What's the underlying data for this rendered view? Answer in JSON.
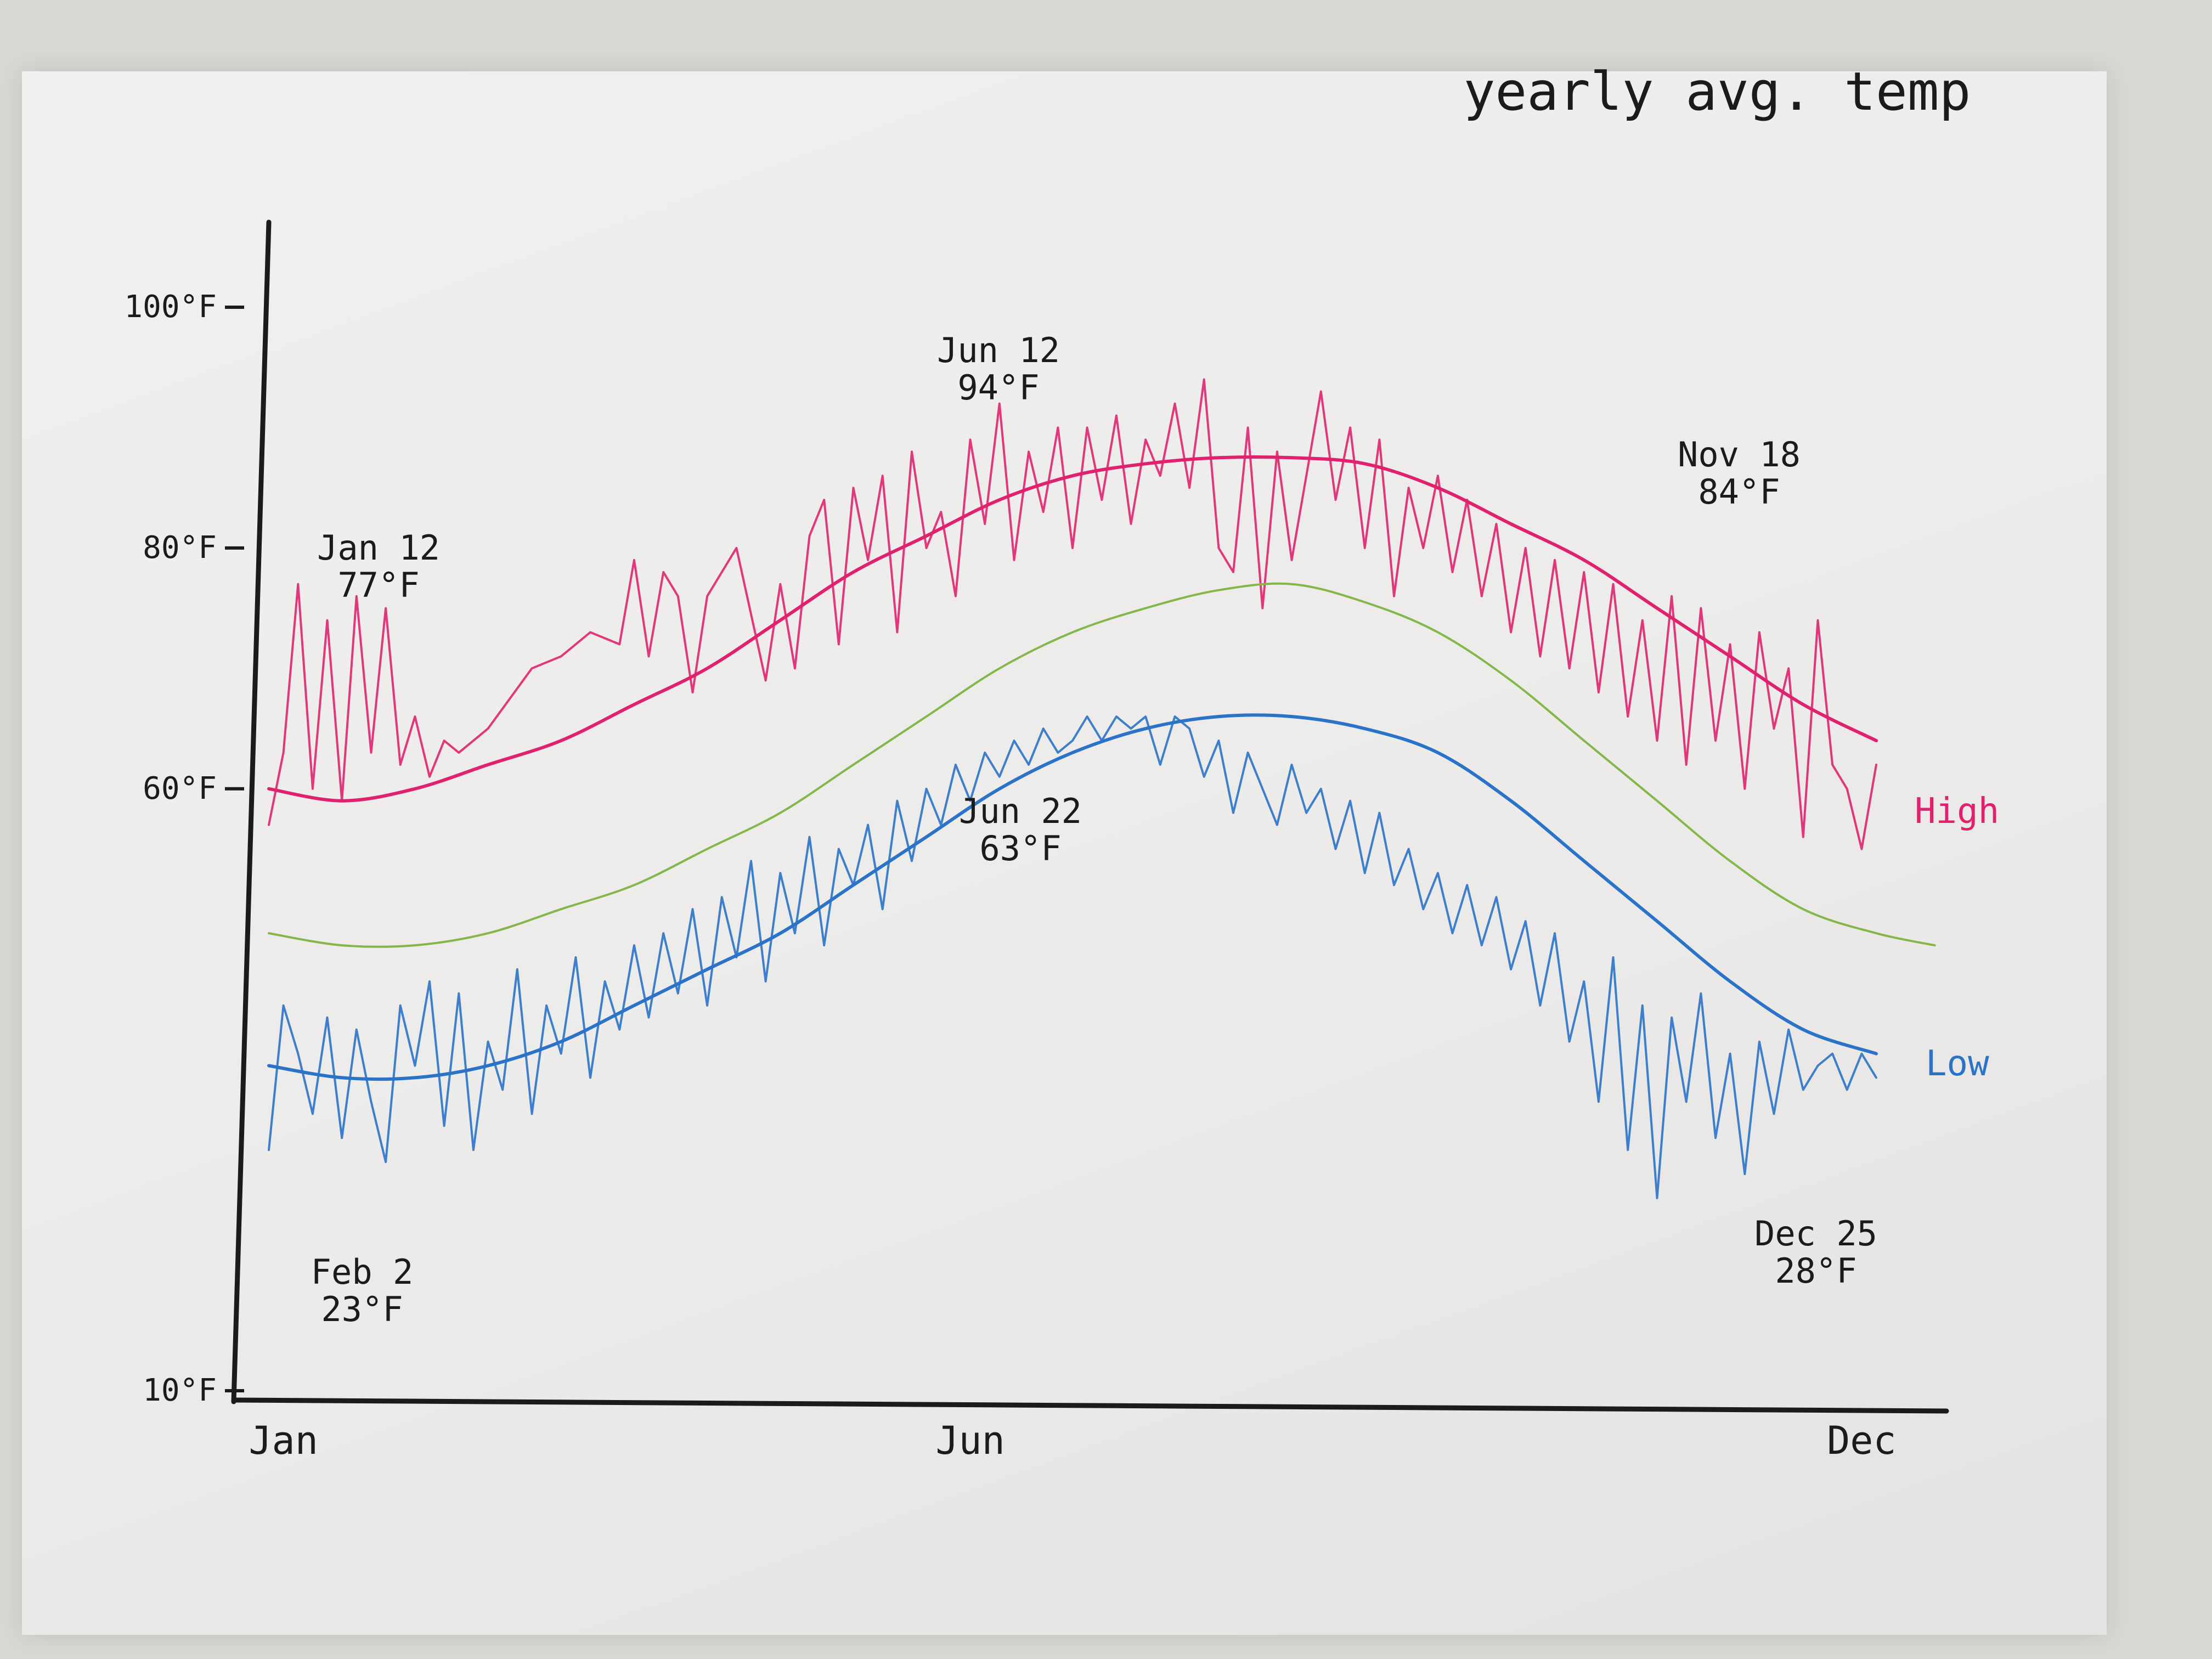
{
  "chart_data": {
    "type": "line",
    "title": "yearly avg. temp",
    "xlabel": "",
    "ylabel": "",
    "x_ticks": [
      "Jan",
      "Jun",
      "Dec"
    ],
    "y_ticks": [
      {
        "value": 100,
        "label": "100°F"
      },
      {
        "value": 80,
        "label": "80°F"
      },
      {
        "value": 60,
        "label": "60°F"
      },
      {
        "value": 10,
        "label": "10°F"
      }
    ],
    "xlim": [
      1,
      12
    ],
    "ylim": [
      10,
      110
    ],
    "grid": false,
    "legend": "inline-right",
    "series": [
      {
        "name": "High",
        "color": "#e0226e",
        "kind": "average",
        "x": [
          1,
          1.5,
          2,
          2.5,
          3,
          3.5,
          4,
          4.5,
          5,
          5.5,
          6,
          6.5,
          7,
          7.5,
          8,
          8.5,
          9,
          9.5,
          10,
          10.5,
          11,
          11.5,
          12
        ],
        "y": [
          60,
          59,
          60,
          62,
          64,
          67,
          70,
          74,
          78,
          81,
          84,
          86,
          87,
          87.5,
          87.5,
          87,
          85,
          82,
          79,
          75,
          71,
          67,
          64
        ]
      },
      {
        "name": "High (daily)",
        "color": "#e0226e",
        "kind": "daily",
        "x": [
          1,
          1.1,
          1.2,
          1.3,
          1.4,
          1.5,
          1.6,
          1.7,
          1.8,
          1.9,
          2,
          2.1,
          2.2,
          2.3,
          2.5,
          2.8,
          3,
          3.2,
          3.4,
          3.5,
          3.6,
          3.7,
          3.8,
          3.9,
          4,
          4.2,
          4.4,
          4.5,
          4.6,
          4.7,
          4.8,
          4.9,
          5,
          5.1,
          5.2,
          5.3,
          5.4,
          5.5,
          5.6,
          5.7,
          5.8,
          5.9,
          6,
          6.1,
          6.2,
          6.3,
          6.4,
          6.5,
          6.6,
          6.7,
          6.8,
          6.9,
          7,
          7.1,
          7.2,
          7.3,
          7.4,
          7.5,
          7.6,
          7.7,
          7.8,
          7.9,
          8,
          8.1,
          8.2,
          8.3,
          8.4,
          8.5,
          8.6,
          8.7,
          8.8,
          8.9,
          9,
          9.1,
          9.2,
          9.3,
          9.4,
          9.5,
          9.6,
          9.7,
          9.8,
          9.9,
          10,
          10.1,
          10.2,
          10.3,
          10.4,
          10.5,
          10.6,
          10.7,
          10.8,
          10.9,
          11,
          11.1,
          11.2,
          11.3,
          11.4,
          11.5,
          11.6,
          11.7,
          11.8,
          11.9,
          12
        ],
        "y": [
          57,
          63,
          77,
          60,
          74,
          59,
          76,
          63,
          75,
          62,
          66,
          61,
          64,
          63,
          65,
          70,
          71,
          73,
          72,
          79,
          71,
          78,
          76,
          68,
          76,
          80,
          69,
          77,
          70,
          81,
          84,
          72,
          85,
          79,
          86,
          73,
          88,
          80,
          83,
          76,
          89,
          82,
          92,
          79,
          88,
          83,
          90,
          80,
          90,
          84,
          91,
          82,
          89,
          86,
          92,
          85,
          94,
          80,
          78,
          90,
          75,
          88,
          79,
          86,
          93,
          84,
          90,
          80,
          89,
          76,
          85,
          80,
          86,
          78,
          84,
          76,
          82,
          73,
          80,
          71,
          79,
          70,
          78,
          68,
          77,
          66,
          74,
          64,
          76,
          62,
          75,
          64,
          72,
          60,
          73,
          65,
          70,
          56,
          74,
          62,
          60,
          55,
          62
        ]
      },
      {
        "name": "",
        "color": "#84b74a",
        "kind": "average",
        "x": [
          1,
          1.5,
          2,
          2.5,
          3,
          3.5,
          4,
          4.5,
          5,
          5.5,
          6,
          6.5,
          7,
          7.5,
          8,
          8.5,
          9,
          9.5,
          10,
          10.5,
          11,
          11.5,
          12,
          12.4
        ],
        "y": [
          48,
          47,
          47,
          48,
          50,
          52,
          55,
          58,
          62,
          66,
          70,
          73,
          75,
          76.5,
          77,
          75.5,
          73,
          69,
          64,
          59,
          54,
          50,
          48,
          47
        ]
      },
      {
        "name": "Low",
        "color": "#2a73c9",
        "kind": "average",
        "x": [
          1,
          1.5,
          2,
          2.5,
          3,
          3.5,
          4,
          4.5,
          5,
          5.5,
          6,
          6.5,
          7,
          7.5,
          8,
          8.5,
          9,
          9.5,
          10,
          10.5,
          11,
          11.5,
          12
        ],
        "y": [
          37,
          36,
          36,
          37,
          39,
          42,
          45,
          48,
          52,
          56,
          60,
          63,
          65,
          66,
          66,
          65,
          63,
          59,
          54,
          49,
          44,
          40,
          38
        ]
      },
      {
        "name": "Low (daily)",
        "color": "#2a73c9",
        "kind": "daily",
        "x": [
          1,
          1.1,
          1.2,
          1.3,
          1.4,
          1.5,
          1.6,
          1.7,
          1.8,
          1.9,
          2,
          2.1,
          2.2,
          2.3,
          2.4,
          2.5,
          2.6,
          2.7,
          2.8,
          2.9,
          3,
          3.1,
          3.2,
          3.3,
          3.4,
          3.5,
          3.6,
          3.7,
          3.8,
          3.9,
          4,
          4.1,
          4.2,
          4.3,
          4.4,
          4.5,
          4.6,
          4.7,
          4.8,
          4.9,
          5,
          5.1,
          5.2,
          5.3,
          5.4,
          5.5,
          5.6,
          5.7,
          5.8,
          5.9,
          6,
          6.1,
          6.2,
          6.3,
          6.4,
          6.5,
          6.6,
          6.7,
          6.8,
          6.9,
          7,
          7.1,
          7.2,
          7.3,
          7.4,
          7.5,
          7.6,
          7.7,
          7.8,
          7.9,
          8,
          8.1,
          8.2,
          8.3,
          8.4,
          8.5,
          8.6,
          8.7,
          8.8,
          8.9,
          9,
          9.1,
          9.2,
          9.3,
          9.4,
          9.5,
          9.6,
          9.7,
          9.8,
          9.9,
          10,
          10.1,
          10.2,
          10.3,
          10.4,
          10.5,
          10.6,
          10.7,
          10.8,
          10.9,
          11,
          11.1,
          11.2,
          11.3,
          11.4,
          11.5,
          11.6,
          11.7,
          11.8,
          11.9,
          12
        ],
        "y": [
          30,
          42,
          38,
          33,
          41,
          31,
          40,
          34,
          29,
          42,
          37,
          44,
          32,
          43,
          30,
          39,
          35,
          45,
          33,
          42,
          38,
          46,
          36,
          44,
          40,
          47,
          41,
          48,
          43,
          50,
          42,
          51,
          46,
          54,
          44,
          53,
          48,
          56,
          47,
          55,
          52,
          57,
          50,
          59,
          54,
          60,
          57,
          62,
          59,
          63,
          61,
          64,
          62,
          65,
          63,
          64,
          66,
          64,
          66,
          65,
          66,
          62,
          66,
          65,
          61,
          64,
          58,
          63,
          60,
          57,
          62,
          58,
          60,
          55,
          59,
          53,
          58,
          52,
          55,
          50,
          53,
          48,
          52,
          47,
          51,
          45,
          49,
          42,
          48,
          39,
          44,
          34,
          46,
          30,
          42,
          26,
          41,
          34,
          43,
          31,
          38,
          28,
          39,
          33,
          40,
          35,
          37,
          38,
          35,
          38,
          36
        ]
      }
    ],
    "series_labels": [
      "High",
      "Low"
    ],
    "annotations": [
      {
        "date": "Jan 12",
        "temp": "77°F",
        "x": 1.4,
        "y": 77
      },
      {
        "date": "Feb 2",
        "temp": "23°F",
        "x": 2.1,
        "y": 23
      },
      {
        "date": "Jun 12",
        "temp": "94°F",
        "x": 5.4,
        "y": 94
      },
      {
        "date": "Jun 22",
        "temp": "63°F",
        "x": 5.7,
        "y": 63
      },
      {
        "date": "Nov 18",
        "temp": "84°F",
        "x": 10.6,
        "y": 84
      },
      {
        "date": "Dec 25",
        "temp": "28°F",
        "x": 11.8,
        "y": 28
      }
    ]
  }
}
